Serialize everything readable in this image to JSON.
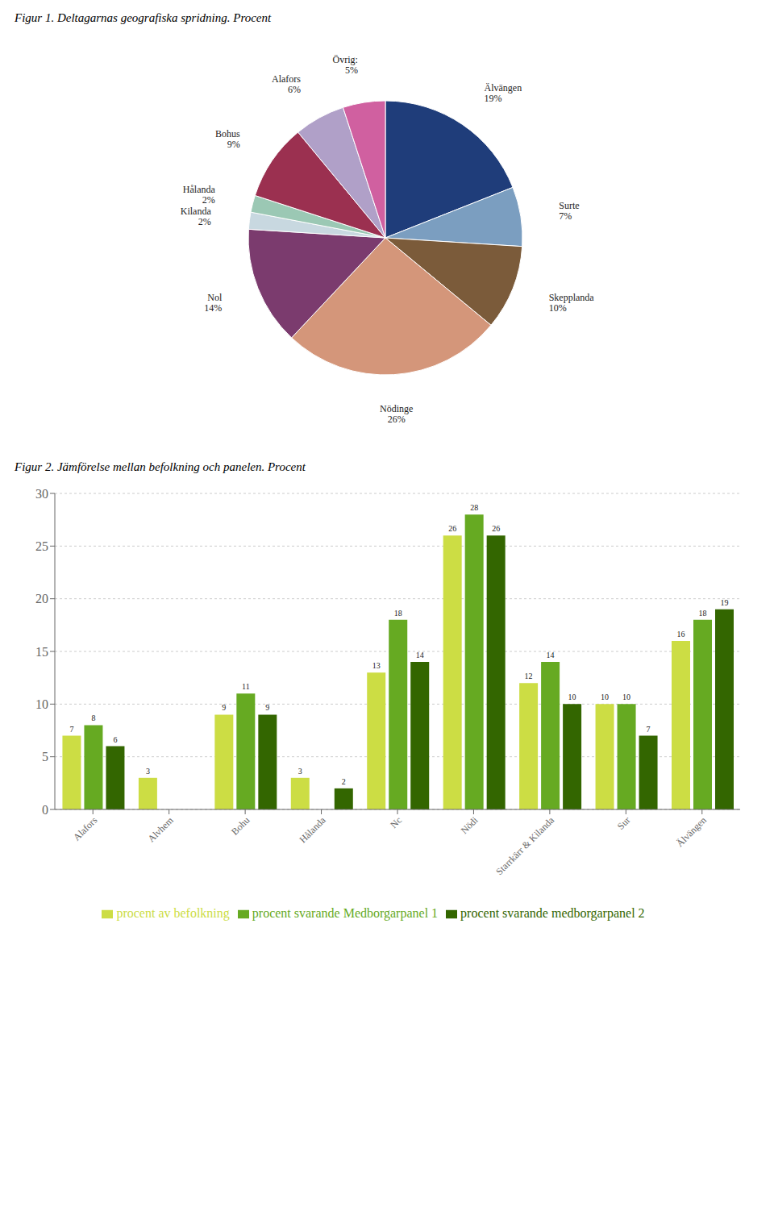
{
  "chart_data": [
    {
      "type": "pie",
      "title": "Figur 1. Deltagarnas geografiska spridning. Procent",
      "categories": [
        "Älvängen",
        "Surte",
        "Skepplanda",
        "Nödinge",
        "Nol",
        "Kilanda",
        "Hålanda",
        "Bohus",
        "Alafors",
        "Övrig:"
      ],
      "values": [
        19,
        7,
        10,
        26,
        14,
        2,
        2,
        9,
        6,
        5
      ],
      "value_labels": [
        "19%",
        "7%",
        "10%",
        "26%",
        "14%",
        "2%",
        "2%",
        "9%",
        "6%",
        "5%"
      ],
      "colors": [
        "#1F3D7A",
        "#7B9EC0",
        "#7B5B3A",
        "#D4967A",
        "#7B3B6E",
        "#C8D8E0",
        "#9BC8B4",
        "#9B3050",
        "#B0A0C8",
        "#D060A0"
      ],
      "data_labels": true
    },
    {
      "type": "bar",
      "title": "Figur 2. Jämförelse mellan befolkning och panelen. Procent",
      "categories": [
        "Alafors",
        "Alvhem",
        "Bohu",
        "Hålanda",
        "Nc",
        "Nödi",
        "Starrkärr & Kilanda",
        "Sur",
        "Älvängen"
      ],
      "series": [
        {
          "name": "procent av befolkning",
          "color": "#CCDD44",
          "values": [
            7,
            3,
            9,
            3,
            13,
            26,
            12,
            10,
            16
          ]
        },
        {
          "name": "procent svarande Medborgarpanel 1",
          "color": "#66AA22",
          "values": [
            8,
            0,
            11,
            0,
            18,
            28,
            14,
            10,
            18
          ]
        },
        {
          "name": "procent svarande medborgarpanel 2",
          "color": "#336600",
          "values": [
            6,
            0,
            9,
            2,
            14,
            26,
            10,
            7,
            19
          ]
        }
      ],
      "ylim": [
        0,
        30
      ],
      "yticks": [
        0,
        5,
        10,
        15,
        20,
        25,
        30
      ],
      "grid": true,
      "legend": "bottom",
      "data_labels": true
    }
  ]
}
